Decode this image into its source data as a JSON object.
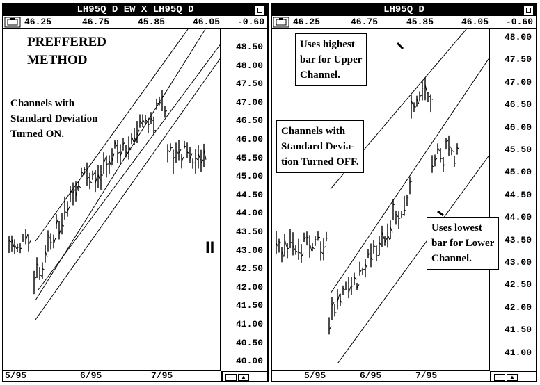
{
  "left": {
    "title": "LH95Q D EW X LH95Q D",
    "prices": [
      "46.25",
      "46.75",
      "45.85",
      "46.05",
      "-0.60"
    ],
    "y_labels": [
      "48.50",
      "48.00",
      "47.50",
      "47.00",
      "46.50",
      "46.00",
      "45.50",
      "45.00",
      "44.50",
      "44.00",
      "43.50",
      "43.00",
      "42.50",
      "42.00",
      "41.50",
      "41.00",
      "40.50",
      "40.00"
    ],
    "dates": [
      "5/95",
      "6/95",
      "7/95"
    ],
    "heading": "PREFFERED\nMETHOD",
    "note": "Channels with\nStandard Deviation\nTurned ON.",
    "marker": "II"
  },
  "right": {
    "title": "LH95Q D",
    "prices": [
      "46.25",
      "46.75",
      "45.85",
      "46.05",
      "-0.60"
    ],
    "y_labels": [
      "48.00",
      "47.50",
      "47.00",
      "46.50",
      "46.00",
      "45.50",
      "45.00",
      "44.50",
      "44.00",
      "43.50",
      "43.00",
      "42.50",
      "42.00",
      "41.50",
      "41.00"
    ],
    "dates": [
      "5/95",
      "6/95",
      "7/95"
    ],
    "note_upper": "Uses highest\nbar for Upper\nChannel.",
    "note_middle": "Channels with\nStandard Devia-\ntion Turned OFF.",
    "note_lower": "Uses lowest\nbar for Lower\nChannel."
  }
}
